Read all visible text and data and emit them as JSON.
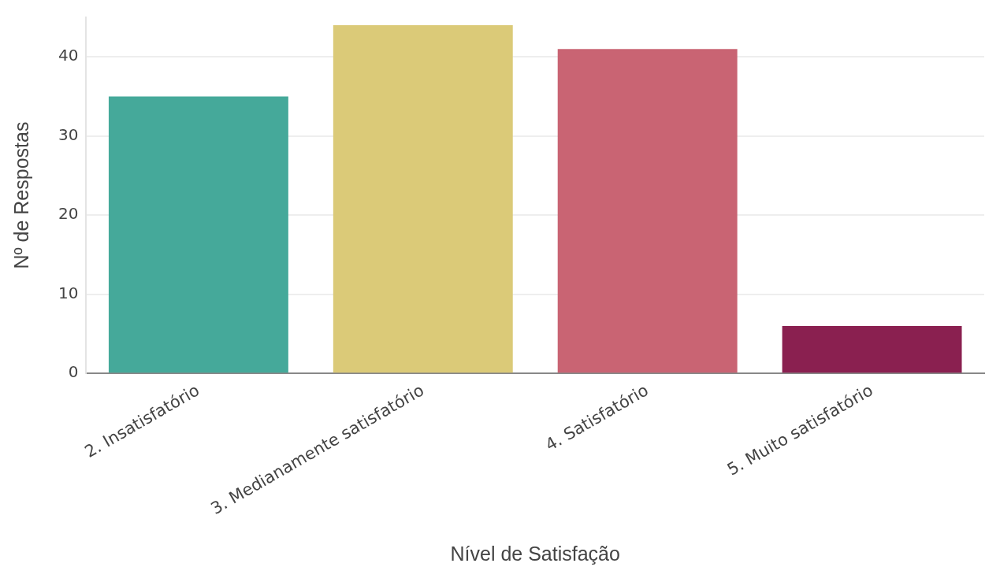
{
  "chart_data": {
    "type": "bar",
    "xlabel": "Nível de Satisfação",
    "ylabel": "Nº de Respostas",
    "categories": [
      "2. Insatisfatório",
      "3. Medianamente satisfatório",
      "4. Satisfatório",
      "5. Muito satisfatório"
    ],
    "values": [
      35,
      44,
      41,
      6
    ],
    "colors": [
      "#45a99a",
      "#dbca78",
      "#c96473",
      "#8a2050"
    ],
    "ylim": [
      0,
      45
    ],
    "yticks": [
      0,
      10,
      20,
      30,
      40
    ],
    "grid": "y",
    "legend": false
  }
}
